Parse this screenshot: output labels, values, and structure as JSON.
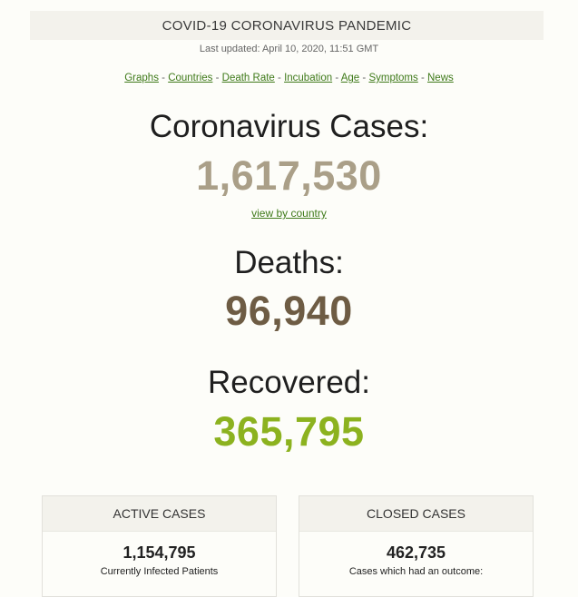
{
  "header": {
    "title": "COVID-19 CORONAVIRUS PANDEMIC"
  },
  "updated": "Last updated: April 10, 2020, 11:51 GMT",
  "nav": {
    "items": [
      "Graphs",
      "Countries",
      "Death Rate",
      "Incubation",
      "Age",
      "Symptoms",
      "News"
    ],
    "separator": " - "
  },
  "cases": {
    "label": "Coronavirus Cases:",
    "value": "1,617,530",
    "link": "view by country",
    "color": "#aa9f88"
  },
  "deaths": {
    "label": "Deaths:",
    "value": "96,940",
    "color": "#6e5c44"
  },
  "recovered": {
    "label": "Recovered:",
    "value": "365,795",
    "color": "#8cb21f"
  },
  "active": {
    "title": "ACTIVE CASES",
    "value": "1,154,795",
    "sub": "Currently Infected Patients"
  },
  "closed": {
    "title": "CLOSED CASES",
    "value": "462,735",
    "sub": "Cases which had an outcome:"
  }
}
